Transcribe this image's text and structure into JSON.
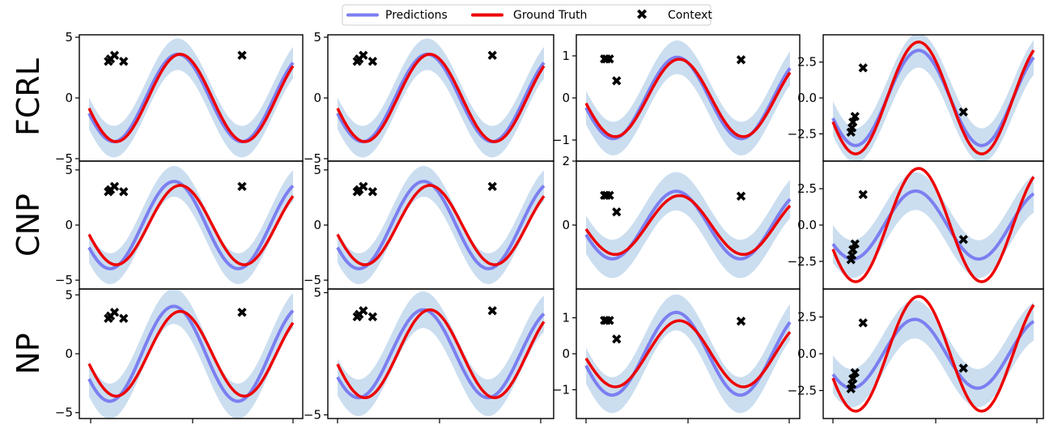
{
  "legend": {
    "predictions_label": "Predictions",
    "ground_truth_label": "Ground Truth",
    "context_label": "Context"
  },
  "row_labels": [
    "FCRL",
    "CNP",
    "NP"
  ],
  "colors": {
    "prediction": "#7b7ff0",
    "band": "#a9c8e6",
    "ground_truth": "#ee0000",
    "context": "#000000",
    "axis": "#000000"
  },
  "chart_data": [
    {
      "row": "FCRL",
      "col": 0,
      "type": "line",
      "amp": 3.6,
      "xlim": [
        -5,
        5
      ],
      "ylim": [
        -5.2,
        5.2
      ],
      "yticks": [
        -5,
        0,
        5
      ],
      "ytick_labels": [
        "−5",
        "0",
        "5"
      ],
      "gt_phase": 0.0,
      "pred": {
        "offset": -0.12,
        "amp_scale": 1.0,
        "band_half": 1.3
      },
      "context_x": [
        -4.05,
        -3.95,
        -3.75,
        -3.3,
        2.5
      ],
      "context_y": [
        3.0,
        3.2,
        3.5,
        3.0,
        3.5
      ]
    },
    {
      "row": "FCRL",
      "col": 1,
      "type": "line",
      "amp": 3.6,
      "xlim": [
        -5,
        5
      ],
      "ylim": [
        -5.2,
        5.2
      ],
      "yticks": [
        -5,
        0,
        5
      ],
      "ytick_labels": [
        "−5",
        "0",
        "5"
      ],
      "gt_phase": 0.0,
      "pred": {
        "offset": -0.12,
        "amp_scale": 1.0,
        "band_half": 1.3
      },
      "context_x": [
        -4.05,
        -3.95,
        -3.75,
        -3.3,
        2.5
      ],
      "context_y": [
        3.0,
        3.2,
        3.5,
        3.0,
        3.5
      ]
    },
    {
      "row": "FCRL",
      "col": 2,
      "type": "line",
      "amp": 0.92,
      "xlim": [
        -5,
        5
      ],
      "ylim": [
        -1.5,
        1.5
      ],
      "yticks": [
        -1,
        0,
        1
      ],
      "ytick_labels": [
        "−1",
        "0",
        "1"
      ],
      "gt_phase": 0.1,
      "pred": {
        "offset": -0.1,
        "amp_scale": 1.05,
        "band_half": 0.4
      },
      "context_x": [
        -4.1,
        -4.0,
        -3.85,
        -3.5,
        2.6
      ],
      "context_y": [
        0.92,
        0.92,
        0.92,
        0.4,
        0.9
      ],
      "x_tick_marks": [
        -5,
        0,
        5
      ]
    },
    {
      "row": "FCRL",
      "col": 3,
      "type": "line",
      "amp": 3.9,
      "xlim": [
        -5,
        5
      ],
      "ylim": [
        -4.4,
        4.4
      ],
      "yticks": [
        -2.5,
        0,
        2.5
      ],
      "ytick_labels": [
        "−2.5",
        "0.0",
        "2.5"
      ],
      "gt_phase": -0.2,
      "pred": {
        "offset": 0.0,
        "amp_scale": 0.85,
        "band_half": 1.2
      },
      "context_x": [
        -4.1,
        -4.05,
        -4.0,
        -3.9,
        -3.5,
        1.5
      ],
      "context_y": [
        -2.4,
        -2.1,
        -1.7,
        -1.3,
        2.1,
        -1.0
      ]
    },
    {
      "row": "CNP",
      "col": 0,
      "type": "line",
      "amp": 3.6,
      "xlim": [
        -5,
        5
      ],
      "ylim": [
        -5.8,
        5.8
      ],
      "yticks": [
        -5,
        0,
        5
      ],
      "ytick_labels": [
        "−5",
        "0",
        "5"
      ],
      "gt_phase": 0.0,
      "pred": {
        "offset": -0.3,
        "amp_scale": 1.1,
        "band_half": 1.4
      },
      "context_x": [
        -4.05,
        -3.95,
        -3.75,
        -3.3,
        2.5
      ],
      "context_y": [
        3.0,
        3.2,
        3.5,
        3.0,
        3.5
      ]
    },
    {
      "row": "CNP",
      "col": 1,
      "type": "line",
      "amp": 3.6,
      "xlim": [
        -5,
        5
      ],
      "ylim": [
        -5.8,
        5.8
      ],
      "yticks": [
        -5,
        0,
        5
      ],
      "ytick_labels": [
        "−5",
        "0",
        "5"
      ],
      "gt_phase": 0.0,
      "pred": {
        "offset": -0.3,
        "amp_scale": 1.1,
        "band_half": 1.4
      },
      "context_x": [
        -4.05,
        -3.95,
        -3.75,
        -3.3,
        2.5
      ],
      "context_y": [
        3.0,
        3.2,
        3.5,
        3.0,
        3.5
      ]
    },
    {
      "row": "CNP",
      "col": 2,
      "type": "line",
      "amp": 0.92,
      "xlim": [
        -5,
        5
      ],
      "ylim": [
        -2.0,
        2.0
      ],
      "yticks": [
        0,
        2
      ],
      "ytick_labels": [
        "0",
        "2"
      ],
      "gt_phase": 0.1,
      "pred": {
        "offset": -0.15,
        "amp_scale": 1.15,
        "band_half": 0.6
      },
      "context_x": [
        -4.1,
        -4.0,
        -3.85,
        -3.5,
        2.6
      ],
      "context_y": [
        0.92,
        0.92,
        0.92,
        0.4,
        0.9
      ],
      "x_tick_marks": [
        -5,
        0,
        5
      ]
    },
    {
      "row": "CNP",
      "col": 3,
      "type": "line",
      "amp": 3.9,
      "xlim": [
        -5,
        5
      ],
      "ylim": [
        -4.4,
        4.4
      ],
      "yticks": [
        -2.5,
        0,
        2.5
      ],
      "ytick_labels": [
        "−2.5",
        "0.0",
        "2.5"
      ],
      "gt_phase": -0.2,
      "pred": {
        "offset": -0.15,
        "amp_scale": 0.6,
        "band_half": 1.3
      },
      "context_x": [
        -4.1,
        -4.05,
        -4.0,
        -3.9,
        -3.5,
        1.5
      ],
      "context_y": [
        -2.4,
        -2.1,
        -1.7,
        -1.3,
        2.1,
        -1.0
      ]
    },
    {
      "row": "NP",
      "col": 0,
      "type": "line",
      "amp": 3.6,
      "xlim": [
        -5,
        5
      ],
      "ylim": [
        -5.5,
        5.5
      ],
      "yticks": [
        -5,
        0,
        5
      ],
      "ytick_labels": [
        "−5",
        "0",
        "5"
      ],
      "gt_phase": 0.0,
      "pred": {
        "offset": -0.32,
        "amp_scale": 1.12,
        "band_half": 1.5
      },
      "context_x": [
        -4.05,
        -3.95,
        -3.75,
        -3.3,
        2.5
      ],
      "context_y": [
        3.0,
        3.2,
        3.5,
        3.0,
        3.5
      ],
      "x_tick_marks": [
        -5,
        0,
        5
      ]
    },
    {
      "row": "NP",
      "col": 1,
      "type": "line",
      "amp": 3.6,
      "xlim": [
        -5,
        5
      ],
      "ylim": [
        -5.3,
        5.3
      ],
      "yticks": [
        -5,
        5
      ],
      "ytick_labels": [
        "−5",
        "5"
      ],
      "gt_phase": 0.0,
      "pred": {
        "offset": -0.32,
        "amp_scale": 1.0,
        "band_half": 1.5
      },
      "context_x": [
        -4.05,
        -3.95,
        -3.75,
        -3.3,
        2.5
      ],
      "context_y": [
        3.0,
        3.2,
        3.5,
        3.0,
        3.5
      ],
      "x_tick_marks": [
        -5,
        0,
        5
      ]
    },
    {
      "row": "NP",
      "col": 2,
      "type": "line",
      "amp": 0.92,
      "xlim": [
        -5,
        5
      ],
      "ylim": [
        -1.8,
        1.8
      ],
      "yticks": [
        -1,
        0,
        1
      ],
      "ytick_labels": [
        "−1",
        "0",
        "1"
      ],
      "gt_phase": 0.1,
      "pred": {
        "offset": -0.15,
        "amp_scale": 1.25,
        "band_half": 0.5
      },
      "context_x": [
        -4.1,
        -4.0,
        -3.85,
        -3.5,
        2.6
      ],
      "context_y": [
        0.92,
        0.92,
        0.92,
        0.4,
        0.9
      ],
      "x_tick_marks": [
        -5,
        0,
        5
      ]
    },
    {
      "row": "NP",
      "col": 3,
      "type": "line",
      "amp": 3.9,
      "xlim": [
        -5,
        5
      ],
      "ylim": [
        -4.4,
        4.4
      ],
      "yticks": [
        -2.5,
        0,
        2.5
      ],
      "ytick_labels": [
        "−2.5",
        "0.0",
        "2.5"
      ],
      "gt_phase": -0.2,
      "pred": {
        "offset": -0.2,
        "amp_scale": 0.6,
        "band_half": 1.3
      },
      "context_x": [
        -4.1,
        -4.05,
        -4.0,
        -3.9,
        -3.5,
        1.5
      ],
      "context_y": [
        -2.4,
        -2.1,
        -1.7,
        -1.3,
        2.1,
        -1.0
      ],
      "x_tick_marks": [
        -5,
        0,
        5
      ]
    }
  ]
}
